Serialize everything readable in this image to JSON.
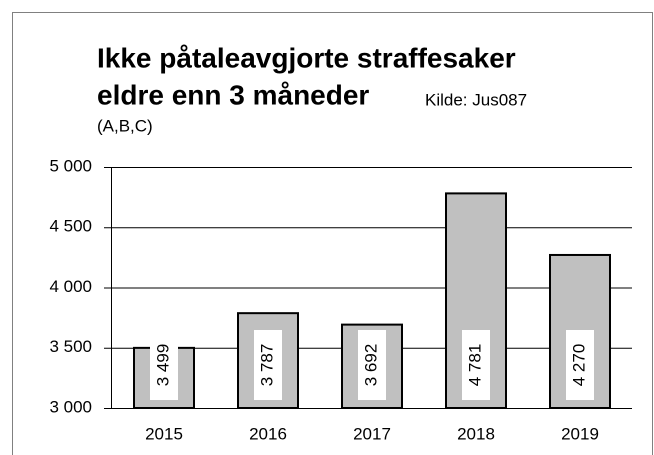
{
  "chart_data": {
    "type": "bar",
    "title_lines": [
      "Ikke påtaleavgjorte straffesaker",
      "eldre enn 3 måneder"
    ],
    "source": "Kilde: Jus087",
    "subtitle": "(A,B,C)",
    "categories": [
      "2015",
      "2016",
      "2017",
      "2018",
      "2019"
    ],
    "values": [
      3499,
      3787,
      3692,
      4781,
      4270
    ],
    "value_labels": [
      "3 499",
      "3 787",
      "3 692",
      "4 781",
      "4 270"
    ],
    "color": "#c0c0c0",
    "ylim": [
      3000,
      5000
    ],
    "yticks": [
      {
        "value": 3000,
        "label": "3 000"
      },
      {
        "value": 3500,
        "label": "3 500"
      },
      {
        "value": 4000,
        "label": "4 000"
      },
      {
        "value": 4500,
        "label": "4 500"
      },
      {
        "value": 5000,
        "label": "5 000"
      }
    ],
    "grid": true
  }
}
